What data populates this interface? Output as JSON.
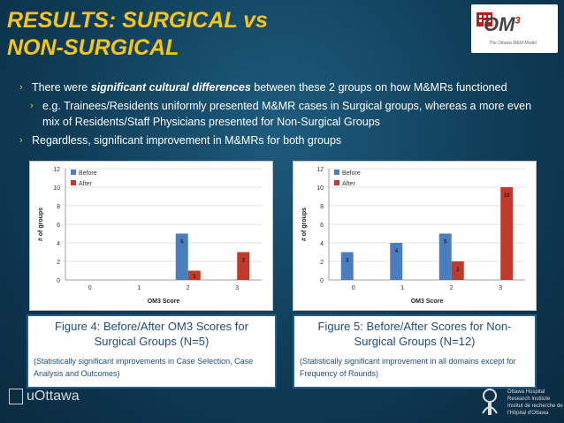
{
  "title": {
    "line1": "RESULTS: SURGICAL vs",
    "line2": "NON-SURGICAL"
  },
  "logo": {
    "text": "OM",
    "sup": "3",
    "tagline": "The Ottawa M&M Model"
  },
  "bullets": {
    "b1_pre": "There were ",
    "b1_em": "significant cultural differences",
    "b1_post": " between these 2 groups on how M&MRs functioned",
    "b2": "e.g. Trainees/Residents uniformly presented M&MR cases in Surgical groups, whereas a more even mix of Residents/Staff Physicians presented for Non-Surgical Groups",
    "b3": "Regardless, significant improvement in M&MRs for both groups"
  },
  "figure4": {
    "caption": "Figure 4: Before/After OM3 Scores for Surgical Groups (N=5)",
    "note": "(Statistically significant improvements in Case Selection, Case Analysis and Outcomes)"
  },
  "figure5": {
    "caption": "Figure 5: Before/After Scores for Non-Surgical Groups (N=12)",
    "note": "(Statistically significant improvement in all domains except for Frequency of Rounds)"
  },
  "footer": {
    "university": "uOttawa",
    "institute": "Ottawa Hospital Research Institute Institut de recherche de l'Hôpital d'Ottawa"
  },
  "chart_data": [
    {
      "type": "bar",
      "categories": [
        "0",
        "1",
        "2",
        "3"
      ],
      "series": [
        {
          "name": "Before",
          "values": [
            0,
            0,
            5,
            0
          ],
          "color": "#4a7ebf"
        },
        {
          "name": "After",
          "values": [
            0,
            0,
            1,
            3
          ],
          "color": "#c0392b"
        }
      ],
      "xlabel": "OM3 Score",
      "ylabel": "# of groups",
      "ylim": [
        0,
        12
      ],
      "yticks": [
        0,
        2,
        4,
        6,
        8,
        10,
        12
      ],
      "labels": [
        {
          "series": 0,
          "index": 2,
          "text": "5"
        },
        {
          "series": 1,
          "index": 2,
          "text": "1"
        },
        {
          "series": 1,
          "index": 3,
          "text": "3"
        }
      ],
      "legend": "top-left"
    },
    {
      "type": "bar",
      "categories": [
        "0",
        "1",
        "2",
        "3"
      ],
      "series": [
        {
          "name": "Before",
          "values": [
            3,
            4,
            5,
            0
          ],
          "color": "#4a7ebf"
        },
        {
          "name": "After",
          "values": [
            0,
            0,
            2,
            10
          ],
          "color": "#c0392b"
        }
      ],
      "xlabel": "OM3 Score",
      "ylabel": "# of groups",
      "ylim": [
        0,
        12
      ],
      "yticks": [
        0,
        2,
        4,
        6,
        8,
        10,
        12
      ],
      "labels": [
        {
          "series": 0,
          "index": 0,
          "text": "3"
        },
        {
          "series": 0,
          "index": 1,
          "text": "4"
        },
        {
          "series": 0,
          "index": 2,
          "text": "5"
        },
        {
          "series": 1,
          "index": 2,
          "text": "2"
        },
        {
          "series": 1,
          "index": 3,
          "text": "10"
        }
      ],
      "legend": "top-left"
    }
  ]
}
